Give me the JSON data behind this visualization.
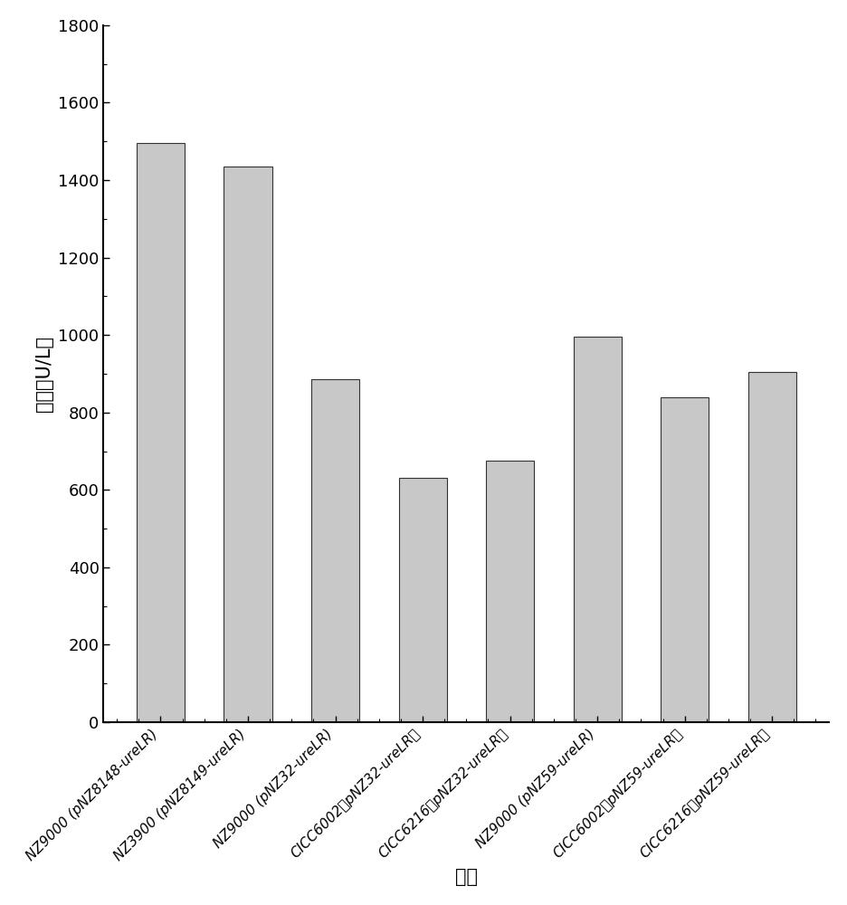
{
  "categories": [
    "NZ9000 (pNZ8148-ureLR)",
    "NZ3900 (pNZ8149-ureLR)",
    "NZ9000 (pNZ32-ureLR)",
    "CICC6002（pNZ32-ureLR）",
    "CICC6216（pNZ32-ureLR）",
    "NZ9000 (pNZ59-ureLR)",
    "CICC6002（pNZ59-ureLR）",
    "CICC6216（pNZ59-ureLR）"
  ],
  "values": [
    1495,
    1435,
    885,
    630,
    675,
    995,
    840,
    905
  ],
  "bar_color": "#c8c8c8",
  "bar_edge_color": "#333333",
  "bar_width": 0.55,
  "ylim": [
    0,
    1800
  ],
  "yticks": [
    0,
    200,
    400,
    600,
    800,
    1000,
    1200,
    1400,
    1600,
    1800
  ],
  "ylabel": "酶活（U/L）",
  "xlabel": "菌株",
  "ylabel_fontsize": 15,
  "xlabel_fontsize": 15,
  "tick_fontsize": 13,
  "background_color": "#ffffff",
  "figure_bg": "#ffffff"
}
